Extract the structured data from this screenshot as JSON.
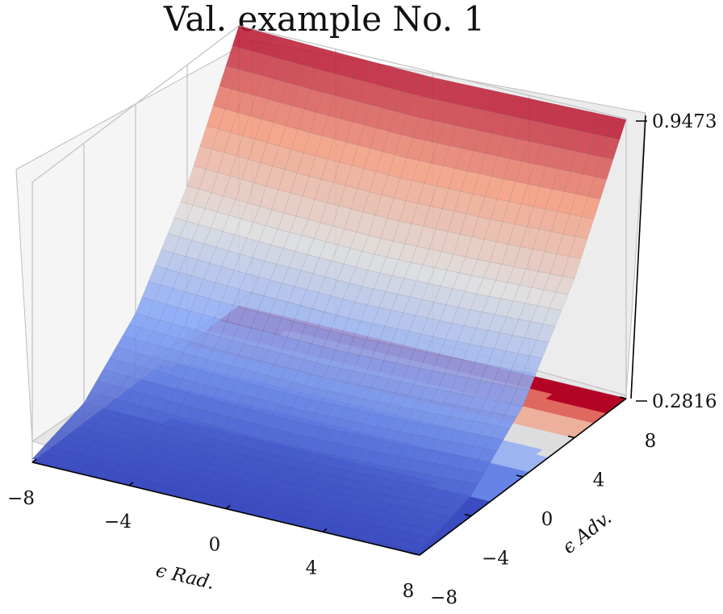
{
  "chart_data": {
    "type": "surface3d",
    "title": "Val. example No. 1",
    "xlabel": "ϵ Rad.",
    "ylabel": "ϵ Adv.",
    "zlabel": "",
    "x_ticks": [
      "−8",
      "−4",
      "0",
      "4",
      "8"
    ],
    "y_ticks": [
      "−8",
      "−4",
      "0",
      "4",
      "8"
    ],
    "z_ticks": [
      "0.2816",
      "0.9473"
    ],
    "xlim": [
      -8,
      8
    ],
    "ylim": [
      -8,
      8
    ],
    "zlim": [
      0.2816,
      0.9473
    ],
    "x_values": [
      -8,
      -4,
      0,
      4,
      8
    ],
    "y_values": [
      -8,
      -4,
      0,
      4,
      8
    ],
    "z_values": [
      [
        0.29,
        0.33,
        0.45,
        0.66,
        0.9473
      ],
      [
        0.285,
        0.32,
        0.44,
        0.65,
        0.94
      ],
      [
        0.2816,
        0.315,
        0.435,
        0.645,
        0.935
      ],
      [
        0.285,
        0.32,
        0.44,
        0.65,
        0.94
      ],
      [
        0.29,
        0.33,
        0.45,
        0.66,
        0.945
      ]
    ],
    "colormap": "coolwarm",
    "contour_projection": "filled contour projected on the floor plane",
    "grid": true,
    "colors": {
      "low": "#3b4cc0",
      "mid": "#dddddd",
      "high": "#b40426",
      "pane": "#f2f2f2",
      "gridline": "#b0b0b0"
    }
  }
}
